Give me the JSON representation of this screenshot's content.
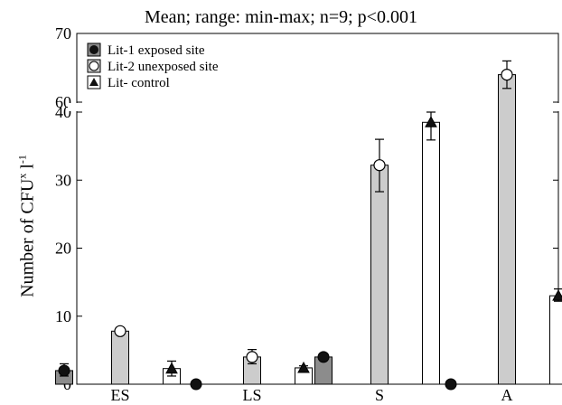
{
  "chart_data": {
    "type": "bar",
    "title": "Mean; range: min-max; n=9; p<0.001",
    "ylabel": {
      "main": "Number of CFU",
      "sup": "x",
      "suffix": " l",
      "sup2": "-1"
    },
    "categories": [
      "ES",
      "LS",
      "S",
      "A"
    ],
    "y_break": {
      "lower_range": [
        0,
        40
      ],
      "upper_range": [
        60,
        70
      ]
    },
    "y_ticks_lower": [
      "0",
      "10",
      "20",
      "30",
      "40"
    ],
    "y_ticks_upper": [
      "60",
      "70"
    ],
    "series": [
      {
        "name": "Lit-1 exposed site",
        "marker": "filled-circle",
        "fill": "#8c8c8c",
        "values": [
          2.0,
          0.0,
          4.0,
          0.0
        ],
        "min": [
          1.2,
          0.0,
          3.7,
          0.0
        ],
        "max": [
          3.0,
          0.0,
          4.3,
          0.0
        ]
      },
      {
        "name": "Lit-2 unexposed site",
        "marker": "open-circle",
        "fill": "#cccccc",
        "values": [
          7.8,
          4.0,
          32.2,
          64.0
        ],
        "min": [
          7.4,
          3.0,
          28.3,
          62.0
        ],
        "max": [
          8.1,
          5.1,
          36.0,
          66.0
        ]
      },
      {
        "name": "Lit- control",
        "marker": "filled-triangle",
        "fill": "#ffffff",
        "values": [
          2.3,
          2.4,
          38.5,
          13.0
        ],
        "min": [
          1.2,
          1.9,
          35.9,
          12.2
        ],
        "max": [
          3.4,
          2.7,
          40.0,
          14.0
        ]
      }
    ],
    "legend_position": "top-left",
    "grid": false
  }
}
